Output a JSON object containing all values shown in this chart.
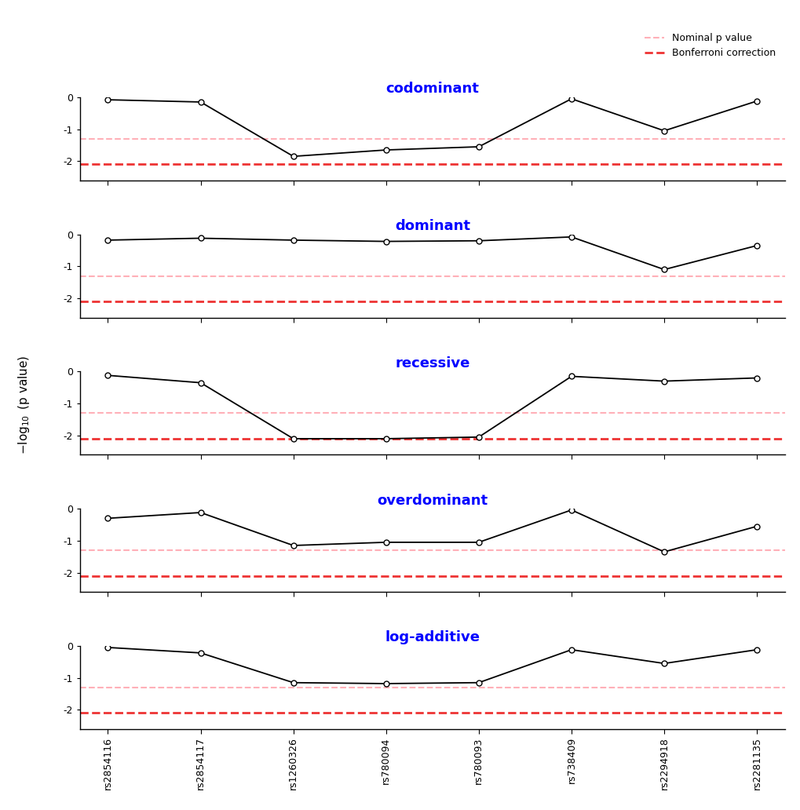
{
  "snps": [
    "rs2854116",
    "rs2854117",
    "rs1260326",
    "rs780094",
    "rs780093",
    "rs738409",
    "rs2294918",
    "rs2281135"
  ],
  "models": [
    "codominant",
    "dominant",
    "recessive",
    "overdominant",
    "log-additive"
  ],
  "values": {
    "codominant": [
      -0.08,
      -0.15,
      -1.85,
      -1.65,
      -1.55,
      -0.05,
      -1.05,
      -0.12
    ],
    "dominant": [
      -0.18,
      -0.12,
      -0.18,
      -0.22,
      -0.2,
      -0.08,
      -1.1,
      -0.35
    ],
    "recessive": [
      -0.12,
      -0.35,
      -2.1,
      -2.1,
      -2.05,
      -0.15,
      -0.3,
      -0.2
    ],
    "overdominant": [
      -0.3,
      -0.12,
      -1.15,
      -1.05,
      -1.05,
      -0.04,
      -1.35,
      -0.55
    ],
    "log-additive": [
      -0.05,
      -0.22,
      -1.15,
      -1.18,
      -1.15,
      -0.12,
      -0.55,
      -0.12
    ]
  },
  "nominal_line": -1.3,
  "bonferroni_line": -2.1,
  "nominal_color": "#FFB0B8",
  "bonferroni_color": "#EE3333",
  "line_color": "black",
  "title_color": "blue",
  "ylim": [
    -2.6,
    0
  ],
  "yticks": [
    0,
    -1,
    -2
  ],
  "ytick_labels": [
    "0",
    "-1",
    "-2"
  ],
  "title_fontsize": 13,
  "tick_fontsize": 9,
  "legend_fontsize": 9,
  "background_color": "white"
}
